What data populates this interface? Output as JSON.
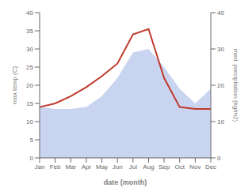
{
  "chart_data": {
    "type": "line",
    "categories": [
      "Jan",
      "Feb",
      "Mar",
      "Apr",
      "May",
      "Jun",
      "Jul",
      "Aug",
      "Sep",
      "Oct",
      "Nov",
      "Dec"
    ],
    "xlabel": "date (month)",
    "ylabel": "max temp (C)",
    "y2label": "med. precipitation (kg/m2)",
    "ylim": [
      0,
      40
    ],
    "yticks": [
      0,
      5,
      10,
      15,
      20,
      25,
      30,
      35,
      40
    ],
    "y2lim": [
      0,
      40
    ],
    "y2ticks": [
      0,
      10,
      20,
      30,
      40
    ],
    "grid": false,
    "series": [
      {
        "type": "area",
        "axis": "y2",
        "color": "#c8d4f0",
        "values": [
          14.0,
          13.5,
          13.5,
          14.0,
          17.0,
          22.0,
          29.0,
          30.0,
          25.0,
          19.0,
          15.0,
          19.0
        ]
      },
      {
        "type": "line",
        "color": "#c0392b",
        "values": [
          14.0,
          15.0,
          17.0,
          19.5,
          22.5,
          26.0,
          34.0,
          35.5,
          22.0,
          14.0,
          13.5,
          13.5
        ]
      }
    ]
  }
}
